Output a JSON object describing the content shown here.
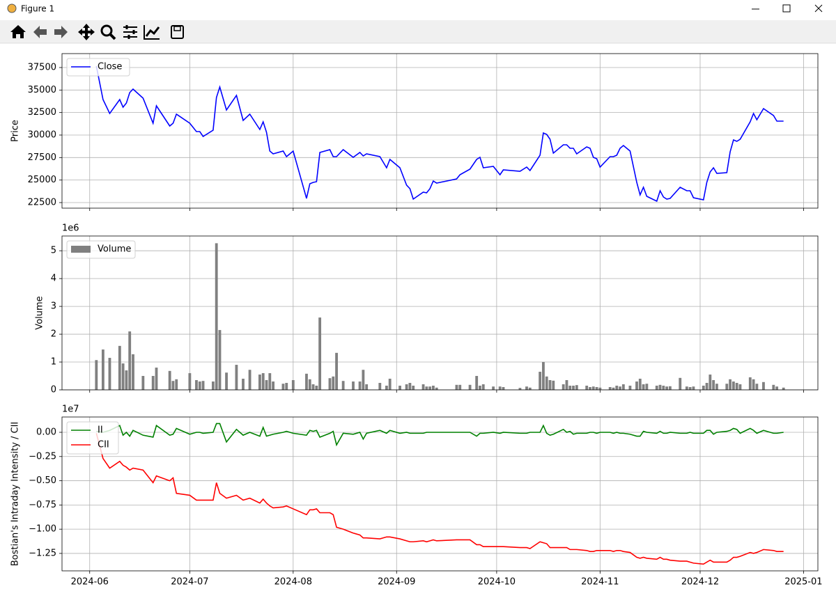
{
  "window_title": "Figure 1",
  "chart_data": [
    {
      "type": "line",
      "ylabel": "Price",
      "x": [
        19877,
        19879,
        19881,
        19884,
        19885,
        19886,
        19887,
        19888,
        19891,
        19894,
        19895,
        19899,
        19900,
        19901,
        19905,
        19907,
        19908,
        19909,
        19912,
        19913,
        19914,
        19916,
        19919,
        19921,
        19923,
        19926,
        19927,
        19928,
        19929,
        19930,
        19933,
        19934,
        19936,
        19940,
        19941,
        19942,
        19943,
        19944,
        19947,
        19948,
        19949,
        19951,
        19954,
        19956,
        19957,
        19958,
        19962,
        19964,
        19965,
        19968,
        19970,
        19971,
        19972,
        19975,
        19976,
        19977,
        19978,
        19979,
        19985,
        19986,
        19989,
        19991,
        19992,
        19993,
        19996,
        19998,
        19999,
        20004,
        20006,
        20007,
        20010,
        20011,
        20012,
        20013,
        20014,
        20017,
        20018,
        20019,
        20020,
        20021,
        20024,
        20025,
        20026,
        20027,
        20028,
        20031,
        20032,
        20033,
        20034,
        20035,
        20037,
        20039,
        20040,
        20041,
        20042,
        20045,
        20046,
        20047,
        20048,
        20049,
        20052,
        20054,
        20055,
        20056,
        20059,
        20060,
        20061,
        20062,
        20063,
        20066,
        20067,
        20068,
        20069,
        20070,
        20073,
        20074,
        20075,
        20077,
        20080,
        20081,
        20083
      ],
      "series": [
        {
          "name": "Close",
          "color": "#0000ff",
          "values": [
            37655,
            33943,
            32397,
            33943,
            33093,
            33557,
            34717,
            35103,
            34098,
            31314,
            33247,
            31005,
            31314,
            32320,
            31314,
            30387,
            30387,
            29845,
            30541,
            34175,
            35335,
            32783,
            34407,
            31624,
            32320,
            30618,
            31469,
            30309,
            28222,
            27912,
            28222,
            27603,
            28222,
            22964,
            24588,
            24742,
            24820,
            28067,
            28376,
            27603,
            27603,
            28376,
            27526,
            28067,
            27680,
            27912,
            27603,
            26366,
            27294,
            26366,
            24433,
            24046,
            22886,
            23660,
            23582,
            24046,
            24897,
            24665,
            25129,
            25593,
            26211,
            27294,
            27526,
            26366,
            26520,
            25593,
            26134,
            25979,
            26443,
            26057,
            27758,
            30232,
            30077,
            29536,
            27990,
            28918,
            28918,
            28531,
            28531,
            27912,
            28686,
            28531,
            27526,
            27371,
            26443,
            27603,
            27603,
            27758,
            28531,
            28840,
            28222,
            24742,
            23350,
            24201,
            23196,
            22655,
            23814,
            23119,
            22886,
            22964,
            24201,
            23814,
            23814,
            23041,
            22809,
            24742,
            25902,
            26366,
            25748,
            25825,
            28144,
            29459,
            29304,
            29536,
            31469,
            32397,
            31701,
            32938,
            32165,
            31546,
            31546
          ]
        }
      ],
      "xlim": [
        19866.7,
        20093.3
      ],
      "xticks": [
        19875,
        19905,
        19936,
        19967,
        19997,
        20028,
        20058,
        20089
      ],
      "ylim": [
        21881,
        39046
      ],
      "yticks": [
        22500,
        25000,
        27500,
        30000,
        32500,
        35000,
        37500
      ],
      "grid": true,
      "legend": "upper left"
    },
    {
      "type": "bar",
      "ylabel": "Volume",
      "offset_label": "1e6",
      "x": [
        19877,
        19879,
        19881,
        19884,
        19885,
        19886,
        19887,
        19888,
        19891,
        19894,
        19895,
        19899,
        19900,
        19901,
        19905,
        19907,
        19908,
        19909,
        19912,
        19913,
        19914,
        19916,
        19919,
        19921,
        19923,
        19926,
        19927,
        19928,
        19929,
        19930,
        19933,
        19934,
        19936,
        19940,
        19941,
        19942,
        19943,
        19944,
        19947,
        19948,
        19949,
        19951,
        19954,
        19956,
        19957,
        19958,
        19962,
        19964,
        19965,
        19968,
        19970,
        19971,
        19972,
        19975,
        19976,
        19977,
        19978,
        19979,
        19985,
        19986,
        19989,
        19991,
        19992,
        19993,
        19996,
        19998,
        19999,
        20004,
        20006,
        20007,
        20010,
        20011,
        20012,
        20013,
        20014,
        20017,
        20018,
        20019,
        20020,
        20021,
        20024,
        20025,
        20026,
        20027,
        20028,
        20031,
        20032,
        20033,
        20034,
        20035,
        20037,
        20039,
        20040,
        20041,
        20042,
        20045,
        20046,
        20047,
        20048,
        20049,
        20052,
        20054,
        20055,
        20056,
        20059,
        20060,
        20061,
        20062,
        20063,
        20066,
        20067,
        20068,
        20069,
        20070,
        20073,
        20074,
        20075,
        20077,
        20080,
        20081,
        20083
      ],
      "bar_width": 0.8,
      "series": [
        {
          "name": "Volume",
          "color": "#808080",
          "values": [
            1070000,
            1450000,
            1150000,
            1580000,
            950000,
            700000,
            2100000,
            1280000,
            500000,
            500000,
            800000,
            680000,
            320000,
            380000,
            600000,
            350000,
            300000,
            320000,
            300000,
            5270000,
            2150000,
            620000,
            900000,
            400000,
            720000,
            550000,
            600000,
            350000,
            600000,
            300000,
            220000,
            250000,
            350000,
            580000,
            380000,
            200000,
            150000,
            2600000,
            420000,
            480000,
            1330000,
            320000,
            300000,
            300000,
            720000,
            200000,
            250000,
            150000,
            400000,
            150000,
            200000,
            250000,
            150000,
            200000,
            120000,
            120000,
            150000,
            80000,
            180000,
            180000,
            180000,
            500000,
            150000,
            200000,
            120000,
            120000,
            100000,
            70000,
            120000,
            80000,
            650000,
            1000000,
            480000,
            350000,
            330000,
            200000,
            350000,
            150000,
            150000,
            170000,
            150000,
            100000,
            120000,
            100000,
            80000,
            100000,
            80000,
            150000,
            120000,
            200000,
            150000,
            300000,
            400000,
            200000,
            220000,
            150000,
            180000,
            150000,
            120000,
            130000,
            430000,
            120000,
            100000,
            120000,
            150000,
            250000,
            550000,
            350000,
            220000,
            220000,
            380000,
            300000,
            250000,
            200000,
            450000,
            380000,
            220000,
            280000,
            180000,
            120000,
            80000
          ]
        }
      ],
      "xlim": [
        19866.7,
        20093.3
      ],
      "xticks": [
        19875,
        19905,
        19936,
        19967,
        19997,
        20028,
        20058,
        20089
      ],
      "ylim": [
        0,
        5530000
      ],
      "yticks": [
        0,
        {
          "value": 1000000,
          "label": "1"
        },
        {
          "value": 2000000,
          "label": "2"
        },
        {
          "value": 3000000,
          "label": "3"
        },
        {
          "value": 4000000,
          "label": "4"
        },
        {
          "value": 5000000,
          "label": "5"
        }
      ],
      "grid": true,
      "legend": "upper left"
    },
    {
      "type": "line",
      "ylabel": "Bostian's Intraday Intensity / CII",
      "offset_label": "1e7",
      "x": [
        19877,
        19879,
        19881,
        19884,
        19885,
        19886,
        19887,
        19888,
        19891,
        19894,
        19895,
        19899,
        19900,
        19901,
        19905,
        19907,
        19908,
        19909,
        19912,
        19913,
        19914,
        19916,
        19919,
        19921,
        19923,
        19926,
        19927,
        19928,
        19929,
        19930,
        19933,
        19934,
        19936,
        19940,
        19941,
        19942,
        19943,
        19944,
        19947,
        19948,
        19949,
        19951,
        19954,
        19956,
        19957,
        19958,
        19962,
        19964,
        19965,
        19968,
        19970,
        19971,
        19972,
        19975,
        19976,
        19977,
        19978,
        19979,
        19985,
        19986,
        19989,
        19991,
        19992,
        19993,
        19996,
        19998,
        19999,
        20004,
        20006,
        20007,
        20010,
        20011,
        20012,
        20013,
        20014,
        20017,
        20018,
        20019,
        20020,
        20021,
        20024,
        20025,
        20026,
        20027,
        20028,
        20031,
        20032,
        20033,
        20034,
        20035,
        20037,
        20039,
        20040,
        20041,
        20042,
        20045,
        20046,
        20047,
        20048,
        20049,
        20052,
        20054,
        20055,
        20056,
        20059,
        20060,
        20061,
        20062,
        20063,
        20066,
        20067,
        20068,
        20069,
        20070,
        20073,
        20074,
        20075,
        20077,
        20080,
        20081,
        20083
      ],
      "series": [
        {
          "name": "II",
          "color": "#008000",
          "values": [
            100000,
            0,
            200000,
            700000,
            -300000,
            0,
            -400000,
            200000,
            -300000,
            -500000,
            700000,
            -300000,
            -200000,
            400000,
            -200000,
            0,
            0,
            -100000,
            0,
            900000,
            900000,
            -1000000,
            300000,
            -300000,
            0,
            -400000,
            500000,
            -400000,
            -300000,
            -200000,
            0,
            100000,
            -100000,
            -300000,
            200000,
            100000,
            200000,
            -500000,
            -100000,
            100000,
            -1300000,
            -100000,
            -200000,
            0,
            -700000,
            -100000,
            200000,
            -100000,
            200000,
            -100000,
            0,
            -100000,
            -100000,
            -100000,
            0,
            0,
            0,
            0,
            0,
            0,
            0,
            -400000,
            -100000,
            -100000,
            0,
            -100000,
            0,
            -100000,
            -100000,
            0,
            0,
            700000,
            -100000,
            -300000,
            -200000,
            300000,
            0,
            100000,
            -200000,
            -100000,
            -100000,
            0,
            0,
            -100000,
            0,
            0,
            -100000,
            0,
            -100000,
            -100000,
            -200000,
            -400000,
            -400000,
            100000,
            0,
            -100000,
            100000,
            -100000,
            -100000,
            0,
            -100000,
            -100000,
            0,
            -100000,
            -100000,
            200000,
            200000,
            -200000,
            0,
            100000,
            200000,
            400000,
            300000,
            -100000,
            400000,
            200000,
            -100000,
            200000,
            -100000,
            -100000,
            0
          ]
        },
        {
          "name": "CII",
          "color": "#ff0000",
          "values": [
            -100000,
            -2700000,
            -3700000,
            -3000000,
            -3400000,
            -3600000,
            -3900000,
            -3700000,
            -3900000,
            -5200000,
            -4500000,
            -5000000,
            -4700000,
            -6300000,
            -6500000,
            -7000000,
            -7000000,
            -7000000,
            -7000000,
            -5200000,
            -6300000,
            -6800000,
            -6500000,
            -7000000,
            -6800000,
            -7300000,
            -6900000,
            -7300000,
            -7600000,
            -7800000,
            -7700000,
            -7600000,
            -7900000,
            -8500000,
            -8000000,
            -8000000,
            -7900000,
            -8300000,
            -8300000,
            -8500000,
            -9800000,
            -10000000,
            -10400000,
            -10600000,
            -10900000,
            -10900000,
            -11000000,
            -10800000,
            -10800000,
            -11000000,
            -11200000,
            -11300000,
            -11300000,
            -11200000,
            -11300000,
            -11200000,
            -11100000,
            -11200000,
            -11100000,
            -11100000,
            -11100000,
            -11600000,
            -11600000,
            -11800000,
            -11800000,
            -11800000,
            -11800000,
            -11900000,
            -11900000,
            -12000000,
            -11300000,
            -11400000,
            -11500000,
            -11900000,
            -11900000,
            -11900000,
            -11900000,
            -12100000,
            -12100000,
            -12100000,
            -12200000,
            -12300000,
            -12300000,
            -12200000,
            -12200000,
            -12200000,
            -12300000,
            -12200000,
            -12200000,
            -12300000,
            -12400000,
            -12900000,
            -13000000,
            -12900000,
            -13000000,
            -13100000,
            -12900000,
            -13100000,
            -13100000,
            -13200000,
            -13300000,
            -13300000,
            -13400000,
            -13500000,
            -13600000,
            -13400000,
            -13200000,
            -13400000,
            -13400000,
            -13400000,
            -13200000,
            -12900000,
            -12900000,
            -12800000,
            -12400000,
            -12500000,
            -12400000,
            -12100000,
            -12200000,
            -12300000,
            -12300000
          ]
        }
      ],
      "xlim": [
        19866.7,
        20093.3
      ],
      "xticks": [
        {
          "value": 19875,
          "label": "2024-06"
        },
        {
          "value": 19905,
          "label": "2024-07"
        },
        {
          "value": 19936,
          "label": "2024-08"
        },
        {
          "value": 19967,
          "label": "2024-09"
        },
        {
          "value": 19997,
          "label": "2024-10"
        },
        {
          "value": 20028,
          "label": "2024-11"
        },
        {
          "value": 20058,
          "label": "2024-12"
        },
        {
          "value": 20089,
          "label": "2025-01"
        }
      ],
      "ylim": [
        -14300000,
        1580000
      ],
      "yticks": [
        {
          "value": -12500000,
          "label": "−1.25"
        },
        {
          "value": -10000000,
          "label": "−1.00"
        },
        {
          "value": -7500000,
          "label": "−0.75"
        },
        {
          "value": -5000000,
          "label": "−0.50"
        },
        {
          "value": -2500000,
          "label": "−0.25"
        },
        {
          "value": 0,
          "label": "0.00"
        }
      ],
      "grid": true,
      "legend": "upper left"
    }
  ]
}
